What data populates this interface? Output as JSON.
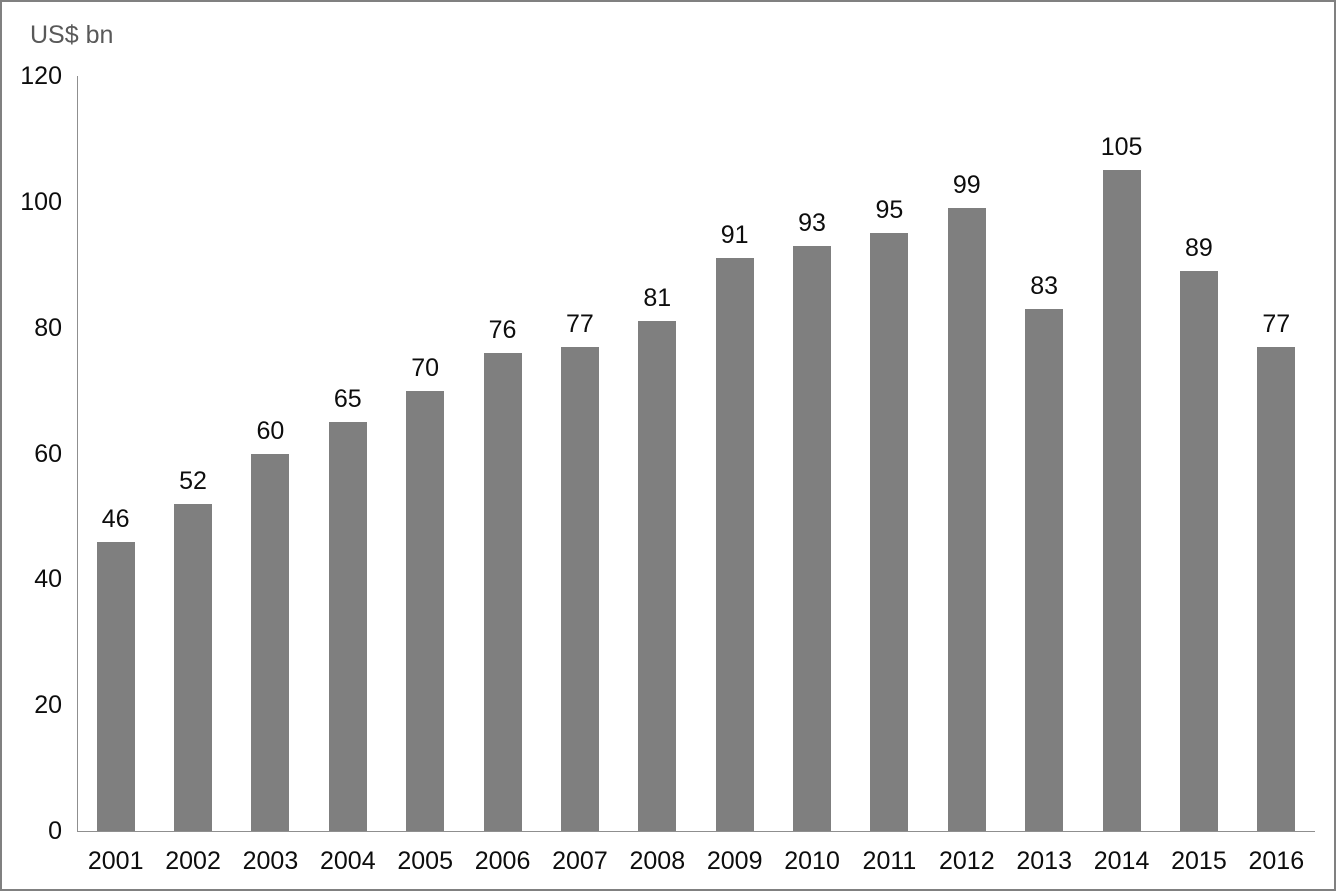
{
  "chart_data": {
    "type": "bar",
    "title": "",
    "ylabel": "US$ bn",
    "xlabel": "",
    "categories": [
      "2001",
      "2002",
      "2003",
      "2004",
      "2005",
      "2006",
      "2007",
      "2008",
      "2009",
      "2010",
      "2011",
      "2012",
      "2013",
      "2014",
      "2015",
      "2016"
    ],
    "values": [
      46,
      52,
      60,
      65,
      70,
      76,
      77,
      81,
      91,
      93,
      95,
      99,
      83,
      105,
      89,
      77
    ],
    "yticks": [
      0,
      20,
      40,
      60,
      80,
      100,
      120
    ],
    "ylim": [
      0,
      120
    ],
    "grid": false,
    "legend": false,
    "data_labels": true,
    "bar_color": "#7f7f7f",
    "axis_color": "#8f8f8f",
    "label_color": "#0d0d0d",
    "ylabel_color": "#595959",
    "background_color": "#ffffff",
    "border_color": "#808080"
  }
}
